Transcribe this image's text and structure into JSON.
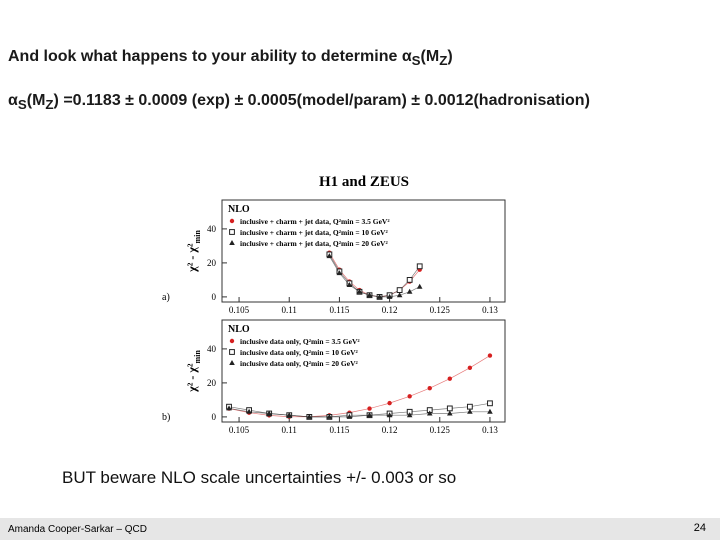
{
  "header": {
    "title": [
      "And look what happens to your ability to determine α",
      "S",
      "(M",
      "Z",
      ")"
    ]
  },
  "result": [
    "α",
    "S",
    "(M",
    "Z",
    ") =0.1183 ± 0.0009 (exp) ± 0.0005(model/param) ± 0.0012(hadronisation)"
  ],
  "figure_title": "H1 and ZEUS",
  "chart_data": [
    {
      "type": "scatter",
      "panel": "a)",
      "label": "NLO",
      "ylabel": "χ² - χ²",
      "ylabel_sub": "min",
      "xlim": [
        0.1033,
        0.1315
      ],
      "ylim": [
        -3,
        57
      ],
      "xticks": [
        0.105,
        0.11,
        0.115,
        0.12,
        0.125,
        0.13
      ],
      "yticks": [
        0,
        20,
        40
      ],
      "x": [
        0.114,
        0.115,
        0.116,
        0.117,
        0.118,
        0.119,
        0.12,
        0.121,
        0.122,
        0.123
      ],
      "series": [
        {
          "name": "inclusive + charm + jet data, Q²min = 3.5 GeV²",
          "color": "#d62020",
          "marker": "circle",
          "values": [
            26,
            16,
            9,
            4,
            1,
            0,
            1,
            4,
            9,
            16
          ]
        },
        {
          "name": "inclusive + charm + jet data, Q²min = 10 GeV²",
          "color": "#222222",
          "marker": "square",
          "values": [
            25,
            15,
            8,
            3,
            1,
            0,
            1,
            4,
            10,
            18
          ]
        },
        {
          "name": "inclusive + charm + jet data, Q²min = 20 GeV²",
          "color": "#222222",
          "marker": "triangle",
          "values": [
            24,
            14,
            7,
            3,
            1,
            0,
            0,
            1,
            3,
            6
          ]
        }
      ]
    },
    {
      "type": "scatter",
      "panel": "b)",
      "label": "NLO",
      "ylabel": "χ² - χ²",
      "ylabel_sub": "min",
      "xlim": [
        0.1033,
        0.1315
      ],
      "ylim": [
        -3,
        57
      ],
      "xticks": [
        0.105,
        0.11,
        0.115,
        0.12,
        0.125,
        0.13
      ],
      "yticks": [
        0,
        20,
        40
      ],
      "x": [
        0.104,
        0.106,
        0.108,
        0.11,
        0.112,
        0.114,
        0.116,
        0.118,
        0.12,
        0.122,
        0.124,
        0.126,
        0.128,
        0.13
      ],
      "series": [
        {
          "name": "inclusive data only, Q²min = 3.5 GeV²",
          "color": "#d62020",
          "marker": "circle",
          "values": [
            4.9,
            2.5,
            0.9,
            0.1,
            0.1,
            0.9,
            2.5,
            4.9,
            8.1,
            12.1,
            16.9,
            22.5,
            28.9,
            36.1
          ]
        },
        {
          "name": "inclusive data only, Q²min = 10 GeV²",
          "color": "#222222",
          "marker": "square",
          "values": [
            6,
            4,
            2,
            1,
            0,
            0,
            1,
            1,
            2,
            3,
            4,
            5,
            6,
            8
          ]
        },
        {
          "name": "inclusive data only, Q²min = 20 GeV²",
          "color": "#222222",
          "marker": "triangle",
          "values": [
            5,
            3,
            2,
            1,
            0,
            0,
            0,
            1,
            1,
            1,
            2,
            2,
            3,
            3
          ]
        }
      ]
    }
  ],
  "note": "BUT beware NLO scale uncertainties +/- 0.003 or so",
  "footer": {
    "author": "Amanda Cooper-Sarkar – QCD",
    "page": "24"
  }
}
